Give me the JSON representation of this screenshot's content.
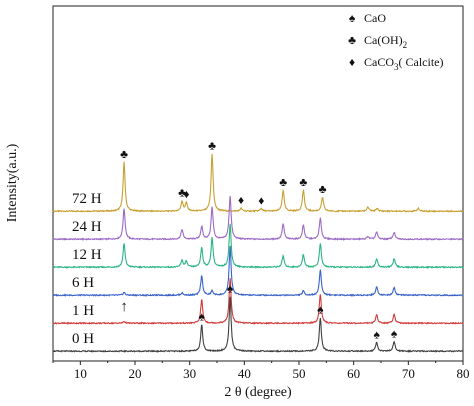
{
  "chart_data": {
    "type": "line",
    "title": "",
    "xlabel": "2 θ (degree)",
    "ylabel": "Intensity(a.u.)",
    "xlim": [
      5,
      80
    ],
    "xticks": [
      10,
      20,
      30,
      40,
      50,
      60,
      70,
      80
    ],
    "yticks_shown": false,
    "grid": false,
    "legend_position": "top-right",
    "legend": [
      {
        "symbol": "♠",
        "label": "CaO",
        "sub": "",
        "suffix": ""
      },
      {
        "symbol": "♣",
        "label": "Ca(OH)",
        "sub": "2",
        "suffix": ""
      },
      {
        "symbol": "♦",
        "label": "CaCO",
        "sub": "3",
        "suffix": "( Calcite)"
      }
    ],
    "series": [
      {
        "name": "72 H",
        "color": "#c8a033",
        "baseline": 5.1,
        "peaks": [
          [
            18.0,
            1.75
          ],
          [
            28.6,
            0.35
          ],
          [
            29.4,
            0.3
          ],
          [
            34.1,
            2.05
          ],
          [
            39.4,
            0.1
          ],
          [
            43.1,
            0.1
          ],
          [
            47.1,
            0.75
          ],
          [
            50.8,
            0.75
          ],
          [
            54.3,
            0.5
          ],
          [
            62.6,
            0.15
          ],
          [
            64.3,
            0.1
          ],
          [
            71.8,
            0.1
          ]
        ],
        "markers": [
          {
            "x": 18.0,
            "symbol": "♣"
          },
          {
            "x": 28.6,
            "symbol": "♣"
          },
          {
            "x": 29.4,
            "symbol": "♦"
          },
          {
            "x": 34.1,
            "symbol": "♣"
          },
          {
            "x": 39.4,
            "symbol": "♦"
          },
          {
            "x": 43.1,
            "symbol": "♦"
          },
          {
            "x": 47.1,
            "symbol": "♣"
          },
          {
            "x": 50.8,
            "symbol": "♣"
          },
          {
            "x": 54.3,
            "symbol": "♣"
          }
        ]
      },
      {
        "name": "24 H",
        "color": "#9b6bc4",
        "baseline": 4.1,
        "peaks": [
          [
            18.0,
            1.1
          ],
          [
            28.6,
            0.35
          ],
          [
            32.2,
            0.45
          ],
          [
            34.1,
            1.15
          ],
          [
            37.4,
            1.55
          ],
          [
            47.1,
            0.55
          ],
          [
            50.8,
            0.5
          ],
          [
            53.9,
            0.75
          ],
          [
            62.6,
            0.1
          ],
          [
            64.2,
            0.25
          ],
          [
            67.4,
            0.25
          ]
        ],
        "markers": []
      },
      {
        "name": "12 H",
        "color": "#2bb583",
        "baseline": 3.1,
        "peaks": [
          [
            18.0,
            0.85
          ],
          [
            28.6,
            0.25
          ],
          [
            29.4,
            0.2
          ],
          [
            32.2,
            0.7
          ],
          [
            34.1,
            1.05
          ],
          [
            37.4,
            1.55
          ],
          [
            47.1,
            0.4
          ],
          [
            50.8,
            0.45
          ],
          [
            53.9,
            0.85
          ],
          [
            64.2,
            0.3
          ],
          [
            67.4,
            0.3
          ]
        ],
        "markers": []
      },
      {
        "name": "6 H",
        "color": "#3a63c8",
        "baseline": 2.1,
        "peaks": [
          [
            18.0,
            0.1
          ],
          [
            28.6,
            0.08
          ],
          [
            32.2,
            0.7
          ],
          [
            34.1,
            0.15
          ],
          [
            37.4,
            1.75
          ],
          [
            50.8,
            0.15
          ],
          [
            53.9,
            0.9
          ],
          [
            64.2,
            0.3
          ],
          [
            67.4,
            0.28
          ]
        ],
        "markers": []
      },
      {
        "name": "1 H",
        "color": "#d23b3b",
        "baseline": 1.1,
        "peaks": [
          [
            18.0,
            0.06
          ],
          [
            32.2,
            0.85
          ],
          [
            37.4,
            1.6
          ],
          [
            53.9,
            1.05
          ],
          [
            64.2,
            0.3
          ],
          [
            67.4,
            0.32
          ]
        ],
        "markers": [],
        "arrow_at": 18.0
      },
      {
        "name": "0 H",
        "color": "#404040",
        "baseline": 0.1,
        "peaks": [
          [
            32.2,
            0.95
          ],
          [
            37.4,
            1.95
          ],
          [
            53.9,
            1.2
          ],
          [
            64.2,
            0.3
          ],
          [
            67.4,
            0.35
          ]
        ],
        "markers": [
          {
            "x": 32.2,
            "symbol": "♠"
          },
          {
            "x": 37.4,
            "symbol": "♠"
          },
          {
            "x": 53.9,
            "symbol": "♠"
          },
          {
            "x": 64.2,
            "symbol": "♠"
          },
          {
            "x": 67.4,
            "symbol": "♠"
          }
        ]
      }
    ],
    "arrow_symbol": "↑"
  }
}
